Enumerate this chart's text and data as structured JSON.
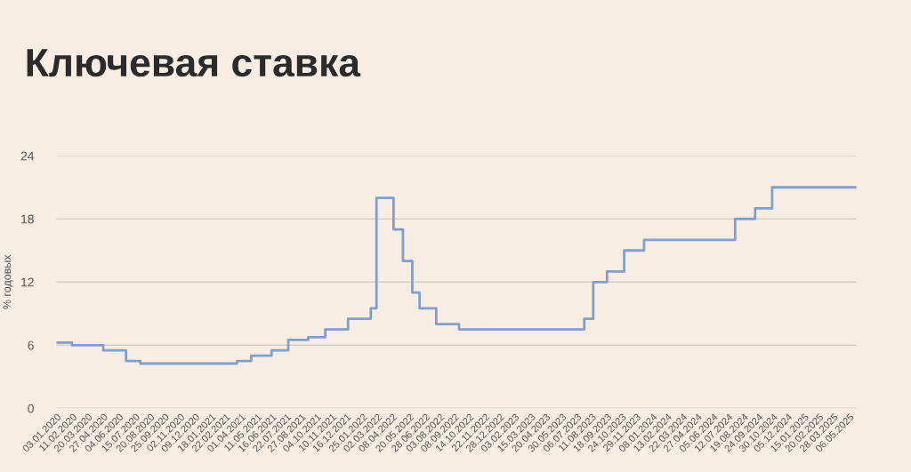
{
  "chart_data": {
    "type": "step",
    "title": "Ключевая ставка",
    "ylabel": "% годовых",
    "x": [
      "2020-01-03",
      "2020-02-10",
      "2020-04-27",
      "2020-06-22",
      "2020-07-27",
      "2021-03-22",
      "2021-04-26",
      "2021-06-15",
      "2021-07-26",
      "2021-09-13",
      "2021-10-25",
      "2021-12-20",
      "2022-02-14",
      "2022-02-28",
      "2022-04-11",
      "2022-05-04",
      "2022-05-27",
      "2022-06-14",
      "2022-07-25",
      "2022-09-19",
      "2023-07-24",
      "2023-08-15",
      "2023-09-18",
      "2023-10-30",
      "2023-12-18",
      "2024-07-29",
      "2024-09-16",
      "2024-10-28",
      "2025-05-23"
    ],
    "series": [
      {
        "color": "#7f9fd0",
        "values": [
          6.25,
          6.0,
          5.5,
          4.5,
          4.25,
          4.5,
          5.0,
          5.5,
          6.5,
          6.75,
          7.5,
          8.5,
          9.5,
          20,
          17,
          14,
          11,
          9.5,
          8.0,
          7.5,
          8.5,
          12,
          13,
          15,
          16,
          18,
          19,
          21,
          21
        ]
      }
    ],
    "xlim": [
      "2020-01-03",
      "2025-05-23"
    ],
    "ylim": [
      0,
      24
    ],
    "yticks": [
      0,
      6,
      12,
      18,
      24
    ],
    "xticks": [
      {
        "value": "2020-01-03",
        "label": "03.01.2020"
      },
      {
        "value": "2020-02-11",
        "label": "11.02.2020"
      },
      {
        "value": "2020-03-20",
        "label": "20.03.2020"
      },
      {
        "value": "2020-04-27",
        "label": "27.04.2020"
      },
      {
        "value": "2020-06-04",
        "label": "04.06.2020"
      },
      {
        "value": "2020-07-15",
        "label": "15.07.2020"
      },
      {
        "value": "2020-08-20",
        "label": "20.08.2020"
      },
      {
        "value": "2020-09-25",
        "label": "25.09.2020"
      },
      {
        "value": "2020-11-02",
        "label": "02.11.2020"
      },
      {
        "value": "2020-12-09",
        "label": "09.12.2020"
      },
      {
        "value": "2021-01-18",
        "label": "18.01.2021"
      },
      {
        "value": "2021-02-22",
        "label": "22.02.2021"
      },
      {
        "value": "2021-04-01",
        "label": "01.04.2021"
      },
      {
        "value": "2021-05-11",
        "label": "11.05.2021"
      },
      {
        "value": "2021-06-16",
        "label": "16.06.2021"
      },
      {
        "value": "2021-07-22",
        "label": "22.07.2021"
      },
      {
        "value": "2021-08-27",
        "label": "27.08.2021"
      },
      {
        "value": "2021-10-04",
        "label": "04.10.2021"
      },
      {
        "value": "2021-11-10",
        "label": "10.11.2021"
      },
      {
        "value": "2021-12-16",
        "label": "16.12.2021"
      },
      {
        "value": "2022-01-25",
        "label": "25.01.2022"
      },
      {
        "value": "2022-03-02",
        "label": "02.03.2022"
      },
      {
        "value": "2022-04-08",
        "label": "08.04.2022"
      },
      {
        "value": "2022-05-20",
        "label": "20.05.2022"
      },
      {
        "value": "2022-06-28",
        "label": "28.06.2022"
      },
      {
        "value": "2022-08-03",
        "label": "03.08.2022"
      },
      {
        "value": "2022-09-08",
        "label": "08.09.2022"
      },
      {
        "value": "2022-10-14",
        "label": "14.10.2022"
      },
      {
        "value": "2022-11-22",
        "label": "22.11.2022"
      },
      {
        "value": "2022-12-28",
        "label": "28.12.2022"
      },
      {
        "value": "2023-02-03",
        "label": "03.02.2023"
      },
      {
        "value": "2023-03-15",
        "label": "15.03.2023"
      },
      {
        "value": "2023-04-20",
        "label": "20.04.2023"
      },
      {
        "value": "2023-05-30",
        "label": "30.05.2023"
      },
      {
        "value": "2023-07-06",
        "label": "06.07.2023"
      },
      {
        "value": "2023-08-11",
        "label": "11.08.2023"
      },
      {
        "value": "2023-09-18",
        "label": "18.09.2023"
      },
      {
        "value": "2023-10-24",
        "label": "24.10.2023"
      },
      {
        "value": "2023-11-29",
        "label": "29.11.2023"
      },
      {
        "value": "2024-01-08",
        "label": "08.01.2024"
      },
      {
        "value": "2024-02-13",
        "label": "13.02.2024"
      },
      {
        "value": "2024-03-22",
        "label": "22.03.2024"
      },
      {
        "value": "2024-04-27",
        "label": "27.04.2024"
      },
      {
        "value": "2024-06-05",
        "label": "05.06.2024"
      },
      {
        "value": "2024-07-12",
        "label": "12.07.2024"
      },
      {
        "value": "2024-08-19",
        "label": "19.08.2024"
      },
      {
        "value": "2024-09-24",
        "label": "24.09.2024"
      },
      {
        "value": "2024-10-30",
        "label": "30.10.2024"
      },
      {
        "value": "2024-12-05",
        "label": "05.12.2024"
      },
      {
        "value": "2025-01-15",
        "label": "15.01.2025"
      },
      {
        "value": "2025-02-20",
        "label": "20.02.2025"
      },
      {
        "value": "2025-03-28",
        "label": "28.03.2025"
      },
      {
        "value": "2025-05-06",
        "label": "06.05.2025"
      }
    ],
    "grid": "y",
    "legend": false
  }
}
